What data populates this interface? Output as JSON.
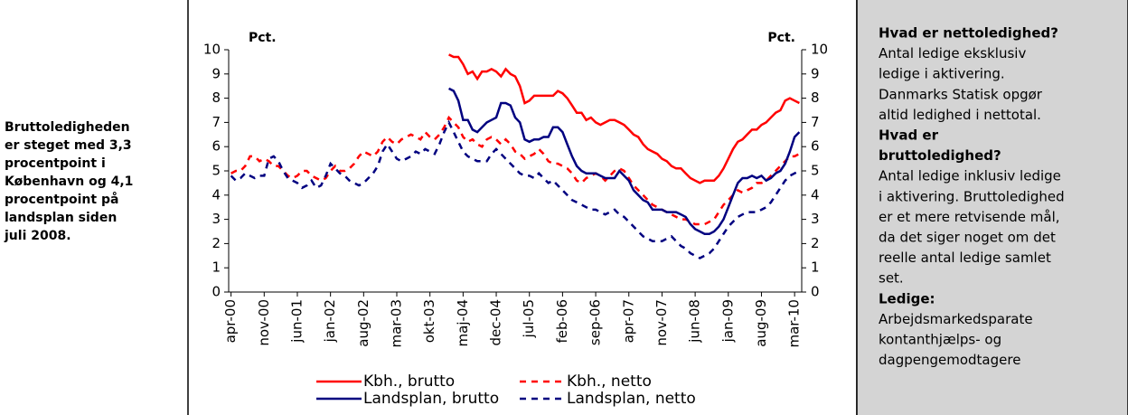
{
  "left_note": [
    "Bruttoledigheden",
    "er steget med 3,3",
    "procentpoint i",
    "København og 4,1",
    "procentpoint på",
    "landsplan siden",
    "juli 2008."
  ],
  "info_panel": [
    {
      "text": "Hvad er nettoledighed?",
      "bold": true
    },
    {
      "text": "Antal ledige eksklusiv"
    },
    {
      "text": "ledige i aktivering."
    },
    {
      "text": "Danmarks Statisk opgør"
    },
    {
      "text": "altid ledighed i nettotal."
    },
    {
      "text": "Hvad er",
      "bold": true
    },
    {
      "text": "bruttoledighed?",
      "bold": true
    },
    {
      "text": "Antal ledige inklusiv ledige"
    },
    {
      "text": "i aktivering. Bruttoledighed"
    },
    {
      "text": "er et mere retvisende mål,"
    },
    {
      "text": "da det siger noget om det"
    },
    {
      "text": "reelle antal ledige samlet"
    },
    {
      "text": "set."
    },
    {
      "text": "Ledige:",
      "bold": true
    },
    {
      "text": "Arbejdsmarkedsparate"
    },
    {
      "text": "kontanthjælps- og"
    },
    {
      "text": "dagpengemodtagere"
    }
  ],
  "chart_data": {
    "type": "line",
    "y_label": "Pct.",
    "y2_label": "Pct.",
    "categories": [
      "apr-00",
      null,
      null,
      null,
      null,
      null,
      null,
      "nov-00",
      null,
      null,
      null,
      null,
      null,
      null,
      "jun-01",
      null,
      null,
      null,
      null,
      null,
      null,
      "jan-02",
      null,
      null,
      null,
      null,
      null,
      null,
      "aug-02",
      null,
      null,
      null,
      null,
      null,
      null,
      "mar-03",
      null,
      null,
      null,
      null,
      null,
      null,
      "okt-03",
      null,
      null,
      null,
      null,
      null,
      null,
      "maj-04",
      null,
      null,
      null,
      null,
      null,
      null,
      "dec-04",
      null,
      null,
      null,
      null,
      null,
      null,
      "jul-05",
      null,
      null,
      null,
      null,
      null,
      null,
      "feb-06",
      null,
      null,
      null,
      null,
      null,
      null,
      "sep-06",
      null,
      null,
      null,
      null,
      null,
      null,
      "apr-07",
      null,
      null,
      null,
      null,
      null,
      null,
      "nov-07",
      null,
      null,
      null,
      null,
      null,
      null,
      "jun-08",
      null,
      null,
      null,
      null,
      null,
      null,
      "jan-09",
      null,
      null,
      null,
      null,
      null,
      null,
      "aug-09",
      null,
      null,
      null,
      null,
      null,
      null,
      "mar-10",
      null
    ],
    "ylim": [
      0,
      10
    ],
    "yticks": [
      0,
      1,
      2,
      3,
      4,
      5,
      6,
      7,
      8,
      9,
      10
    ],
    "y2lim": [
      0,
      10
    ],
    "y2ticks": [
      0,
      1,
      2,
      3,
      4,
      5,
      6,
      7,
      8,
      9,
      10
    ],
    "series": [
      {
        "name": "Kbh., brutto",
        "color": "#ff0000",
        "dashed": false,
        "values": [
          null,
          null,
          null,
          null,
          null,
          null,
          null,
          null,
          null,
          null,
          null,
          null,
          null,
          null,
          null,
          null,
          null,
          null,
          null,
          null,
          null,
          null,
          null,
          null,
          null,
          null,
          null,
          null,
          null,
          null,
          null,
          null,
          null,
          null,
          null,
          null,
          null,
          null,
          null,
          null,
          null,
          null,
          null,
          null,
          null,
          null,
          9.8,
          9.7,
          9.7,
          9.4,
          9.0,
          9.1,
          8.8,
          9.1,
          9.1,
          9.2,
          9.1,
          8.9,
          9.2,
          9.0,
          8.9,
          8.5,
          7.8,
          7.9,
          8.1,
          8.1,
          8.1,
          8.1,
          8.1,
          8.3,
          8.2,
          8.0,
          7.7,
          7.4,
          7.4,
          7.1,
          7.2,
          7.0,
          6.9,
          7.0,
          7.1,
          7.1,
          7.0,
          6.9,
          6.7,
          6.5,
          6.4,
          6.1,
          5.9,
          5.8,
          5.7,
          5.5,
          5.4,
          5.2,
          5.1,
          5.1,
          4.9,
          4.7,
          4.6,
          4.5,
          4.6,
          4.6,
          4.6,
          4.8,
          5.1,
          5.5,
          5.9,
          6.2,
          6.3,
          6.5,
          6.7,
          6.7,
          6.9,
          7.0,
          7.2,
          7.4,
          7.5,
          7.9,
          8.0,
          7.9,
          7.8
        ]
      },
      {
        "name": "Kbh., netto",
        "color": "#ff0000",
        "dashed": true,
        "values": [
          4.9,
          5.0,
          5.0,
          5.2,
          5.6,
          5.6,
          5.4,
          5.5,
          5.4,
          5.2,
          5.2,
          5.0,
          4.8,
          4.7,
          4.8,
          5.0,
          5.0,
          4.8,
          4.7,
          4.6,
          4.7,
          5.0,
          5.2,
          5.0,
          5.0,
          5.1,
          5.3,
          5.6,
          5.8,
          5.7,
          5.6,
          5.8,
          6.2,
          6.4,
          6.2,
          6.1,
          6.3,
          6.4,
          6.5,
          6.4,
          6.3,
          6.6,
          6.4,
          6.3,
          6.5,
          6.8,
          7.2,
          7.0,
          6.8,
          6.4,
          6.2,
          6.3,
          6.1,
          6.0,
          6.3,
          6.4,
          6.3,
          6.1,
          6.3,
          6.1,
          5.8,
          5.7,
          5.5,
          5.6,
          5.7,
          5.9,
          5.7,
          5.4,
          5.3,
          5.3,
          5.2,
          5.1,
          4.9,
          4.6,
          4.5,
          4.7,
          4.8,
          4.9,
          4.8,
          4.6,
          4.8,
          5.0,
          5.1,
          5.0,
          4.7,
          4.4,
          4.2,
          4.0,
          3.8,
          3.6,
          3.5,
          3.4,
          3.3,
          3.2,
          3.1,
          3.0,
          3.0,
          2.9,
          2.8,
          2.8,
          2.8,
          2.9,
          3.0,
          3.3,
          3.6,
          3.8,
          4.0,
          4.2,
          4.1,
          4.2,
          4.3,
          4.5,
          4.5,
          4.6,
          4.8,
          5.0,
          5.2,
          5.4,
          5.6,
          5.6,
          5.7
        ]
      },
      {
        "name": "Landsplan, brutto",
        "color": "#000080",
        "dashed": false,
        "values": [
          null,
          null,
          null,
          null,
          null,
          null,
          null,
          null,
          null,
          null,
          null,
          null,
          null,
          null,
          null,
          null,
          null,
          null,
          null,
          null,
          null,
          null,
          null,
          null,
          null,
          null,
          null,
          null,
          null,
          null,
          null,
          null,
          null,
          null,
          null,
          null,
          null,
          null,
          null,
          null,
          null,
          null,
          null,
          null,
          null,
          null,
          8.4,
          8.3,
          7.9,
          7.1,
          7.1,
          6.7,
          6.6,
          6.8,
          7.0,
          7.1,
          7.2,
          7.8,
          7.8,
          7.7,
          7.2,
          7.0,
          6.3,
          6.2,
          6.3,
          6.3,
          6.4,
          6.4,
          6.8,
          6.8,
          6.6,
          6.1,
          5.6,
          5.2,
          5.0,
          4.9,
          4.9,
          4.9,
          4.8,
          4.7,
          4.7,
          4.7,
          5.0,
          4.8,
          4.6,
          4.2,
          4.0,
          3.8,
          3.7,
          3.4,
          3.4,
          3.4,
          3.3,
          3.3,
          3.3,
          3.2,
          3.1,
          2.8,
          2.6,
          2.5,
          2.4,
          2.4,
          2.5,
          2.7,
          3.0,
          3.5,
          4.0,
          4.5,
          4.7,
          4.7,
          4.8,
          4.7,
          4.8,
          4.6,
          4.7,
          4.9,
          5.0,
          5.3,
          5.8,
          6.4,
          6.6
        ]
      },
      {
        "name": "Landsplan, netto",
        "color": "#000080",
        "dashed": true,
        "values": [
          4.8,
          4.6,
          4.7,
          4.9,
          4.8,
          4.7,
          4.8,
          4.8,
          5.5,
          5.6,
          5.4,
          5.0,
          4.7,
          4.6,
          4.5,
          4.3,
          4.4,
          4.6,
          4.3,
          4.4,
          4.8,
          5.3,
          5.1,
          4.9,
          4.8,
          4.6,
          4.5,
          4.4,
          4.5,
          4.7,
          4.9,
          5.2,
          5.8,
          6.1,
          5.8,
          5.5,
          5.4,
          5.5,
          5.6,
          5.8,
          5.7,
          5.9,
          5.8,
          5.7,
          6.1,
          6.6,
          7.0,
          6.6,
          6.2,
          5.8,
          5.6,
          5.5,
          5.4,
          5.4,
          5.4,
          5.7,
          5.9,
          5.7,
          5.5,
          5.3,
          5.1,
          4.9,
          4.8,
          4.8,
          4.7,
          4.9,
          4.7,
          4.5,
          4.6,
          4.4,
          4.2,
          4.0,
          3.8,
          3.7,
          3.6,
          3.5,
          3.4,
          3.4,
          3.3,
          3.2,
          3.3,
          3.4,
          3.2,
          3.1,
          2.9,
          2.7,
          2.5,
          2.3,
          2.2,
          2.1,
          2.1,
          2.1,
          2.2,
          2.3,
          2.1,
          1.9,
          1.8,
          1.6,
          1.5,
          1.4,
          1.5,
          1.6,
          1.8,
          2.1,
          2.4,
          2.7,
          2.9,
          3.1,
          3.2,
          3.3,
          3.3,
          3.3,
          3.4,
          3.5,
          3.7,
          4.0,
          4.3,
          4.6,
          4.8,
          4.9,
          5.0
        ]
      }
    ]
  }
}
